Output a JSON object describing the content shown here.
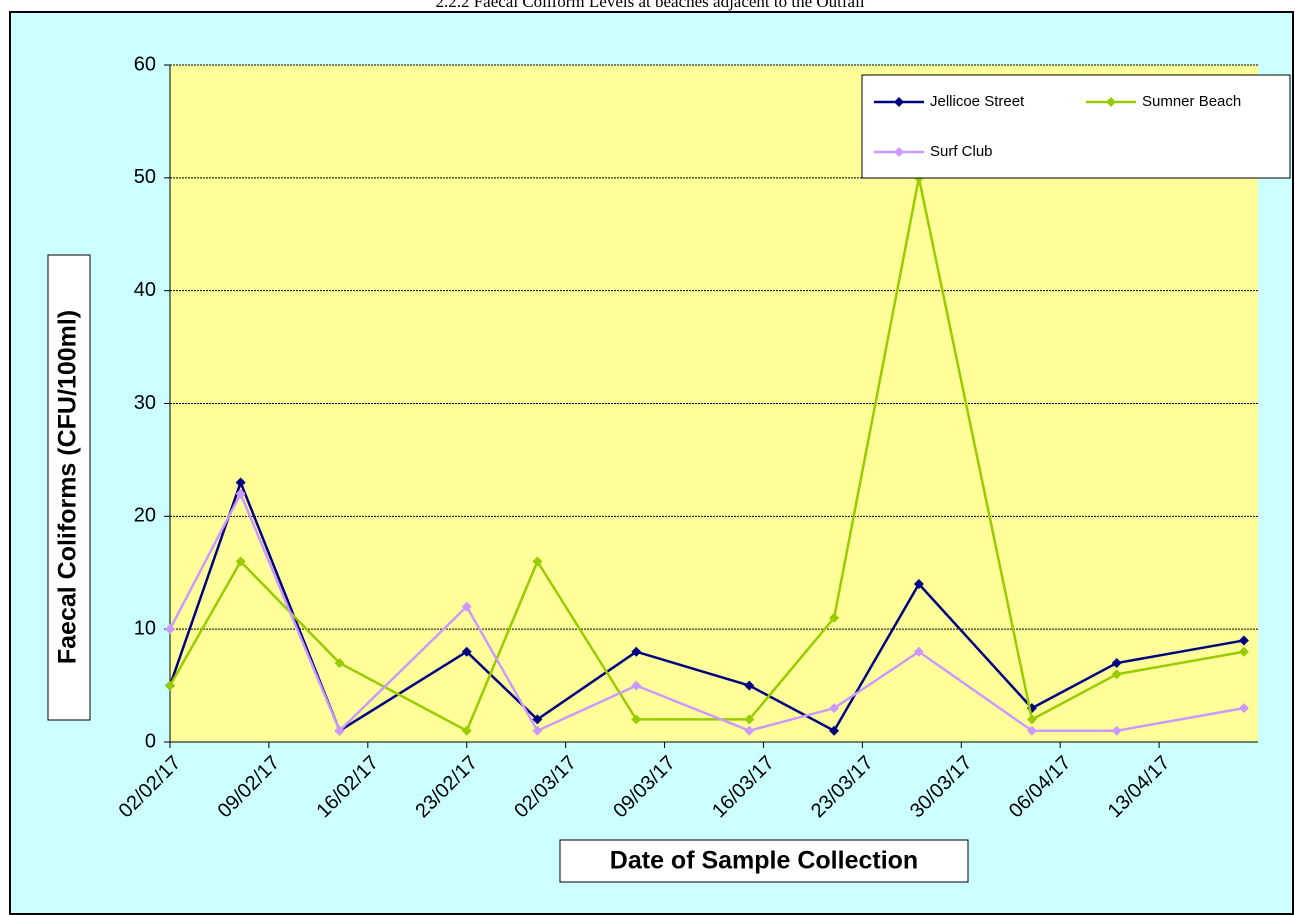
{
  "chart_data": {
    "type": "line",
    "title": "2.2.2 Faecal Coliform Levels at beaches adjacent to the Outfall",
    "x_label": "Date of Sample Collection",
    "y_label": "Faecal Coliforms (CFU/100ml)",
    "x": [
      "02/02/17",
      "07/02/17",
      "14/02/17",
      "23/02/17",
      "28/02/17",
      "07/03/17",
      "15/03/17",
      "21/03/17",
      "27/03/17",
      "04/04/17",
      "10/04/17",
      "19/04/17"
    ],
    "series": [
      {
        "name": "Jellicoe Street",
        "color": "#000080",
        "values": [
          5,
          23,
          1,
          8,
          2,
          8,
          5,
          1,
          14,
          3,
          7,
          9
        ]
      },
      {
        "name": "Sumner Beach",
        "color": "#99cc00",
        "values": [
          5,
          16,
          7,
          1,
          16,
          2,
          2,
          11,
          50,
          2,
          6,
          8
        ]
      },
      {
        "name": "Surf Club",
        "color": "#cc99ff",
        "values": [
          10,
          22,
          1,
          12,
          1,
          5,
          1,
          3,
          8,
          1,
          1,
          3
        ]
      }
    ],
    "xlim": [
      "02/02/17",
      "20/04/17"
    ],
    "xticks": [
      "02/02/17",
      "09/02/17",
      "16/02/17",
      "23/02/17",
      "02/03/17",
      "09/03/17",
      "16/03/17",
      "23/03/17",
      "30/03/17",
      "06/04/17",
      "13/04/17"
    ],
    "ylim": [
      0,
      60
    ],
    "yticks": [
      0,
      10,
      20,
      30,
      40,
      50,
      60
    ],
    "grid": true,
    "legend": "top-right"
  }
}
